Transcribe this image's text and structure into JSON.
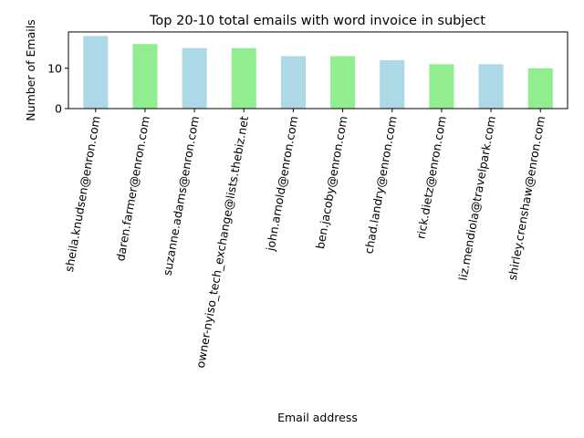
{
  "chart_data": {
    "type": "bar",
    "title": "Top 20-10 total emails with word invoice in subject",
    "xlabel": "Email address",
    "ylabel": "Number of Emails",
    "categories": [
      "sheila.knudsen@enron.com",
      "daren.farmer@enron.com",
      "suzanne.adams@enron.com",
      "owner-nyiso_tech_exchange@lists.thebiz.net",
      "john.arnold@enron.com",
      "ben.jacoby@enron.com",
      "chad.landry@enron.com",
      "rick.dietz@enron.com",
      "liz.mendiola@travelpark.com",
      "shirley.crenshaw@enron.com"
    ],
    "values": [
      18,
      16,
      15,
      15,
      13,
      13,
      12,
      11,
      11,
      10
    ],
    "bar_colors": [
      "#add8e6",
      "#90ee90"
    ],
    "yticks": [
      0,
      10
    ],
    "ylim": [
      0,
      19
    ],
    "grid": false,
    "legend": "none"
  }
}
